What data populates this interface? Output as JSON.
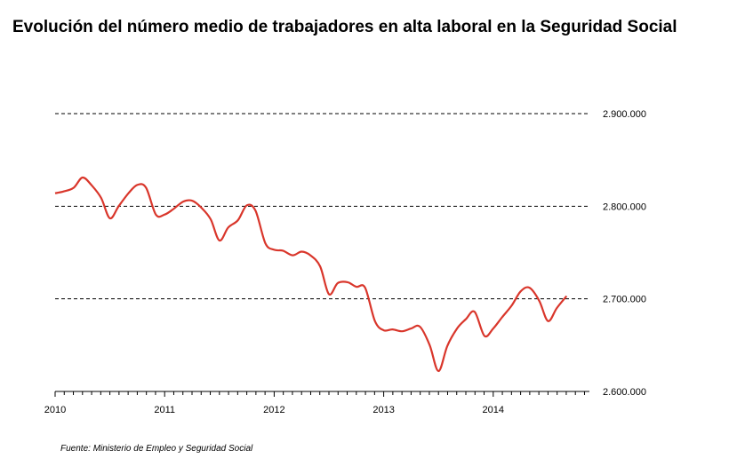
{
  "chart_data": {
    "type": "line",
    "title": "Evolución del número medio de trabajadores en alta laboral en la Seguridad Social",
    "xlabel": "",
    "ylabel": "",
    "x_range": [
      2010.0,
      2014.75
    ],
    "ylim": [
      2600000,
      2900000
    ],
    "y_ticks": [
      2600000,
      2700000,
      2800000,
      2900000
    ],
    "y_tick_labels": [
      "2.600.000",
      "2.700.000",
      "2.800.000",
      "2.900.000"
    ],
    "x_ticks": [
      2010,
      2011,
      2012,
      2013,
      2014
    ],
    "x_tick_labels": [
      "2010",
      "2011",
      "2012",
      "2013",
      "2014"
    ],
    "grid": "dashed horizontal",
    "legend": "none",
    "line_color": "#d9362b",
    "series": [
      {
        "x": [
          2010.0,
          2010.08,
          2010.17,
          2010.25,
          2010.33,
          2010.42,
          2010.5,
          2010.58,
          2010.67,
          2010.75,
          2010.83,
          2010.92,
          2011.0,
          2011.08,
          2011.17,
          2011.25,
          2011.33,
          2011.42,
          2011.5,
          2011.58,
          2011.67,
          2011.75,
          2011.83,
          2011.92,
          2012.0,
          2012.08,
          2012.17,
          2012.25,
          2012.33,
          2012.42,
          2012.5,
          2012.58,
          2012.67,
          2012.75,
          2012.83,
          2012.92,
          2013.0,
          2013.08,
          2013.17,
          2013.25,
          2013.33,
          2013.42,
          2013.5,
          2013.58,
          2013.67,
          2013.75,
          2013.83,
          2013.92,
          2014.0,
          2014.08,
          2014.17,
          2014.25,
          2014.33,
          2014.42,
          2014.5,
          2014.58,
          2014.67
        ],
        "values": [
          2814000,
          2816000,
          2820000,
          2831000,
          2823000,
          2809000,
          2787000,
          2800000,
          2814000,
          2823000,
          2820000,
          2791000,
          2791000,
          2797000,
          2805000,
          2806000,
          2799000,
          2786000,
          2763000,
          2777000,
          2785000,
          2801000,
          2795000,
          2760000,
          2753000,
          2752000,
          2747000,
          2751000,
          2747000,
          2735000,
          2705000,
          2717000,
          2718000,
          2713000,
          2712000,
          2676000,
          2666000,
          2667000,
          2665000,
          2668000,
          2670000,
          2650000,
          2622000,
          2649000,
          2668000,
          2678000,
          2686000,
          2660000,
          2668000,
          2680000,
          2693000,
          2708000,
          2712000,
          2698000,
          2676000,
          2690000,
          2703000
        ]
      }
    ]
  },
  "source_text": "Fuente: Ministerio de Empleo y Seguridad Social"
}
